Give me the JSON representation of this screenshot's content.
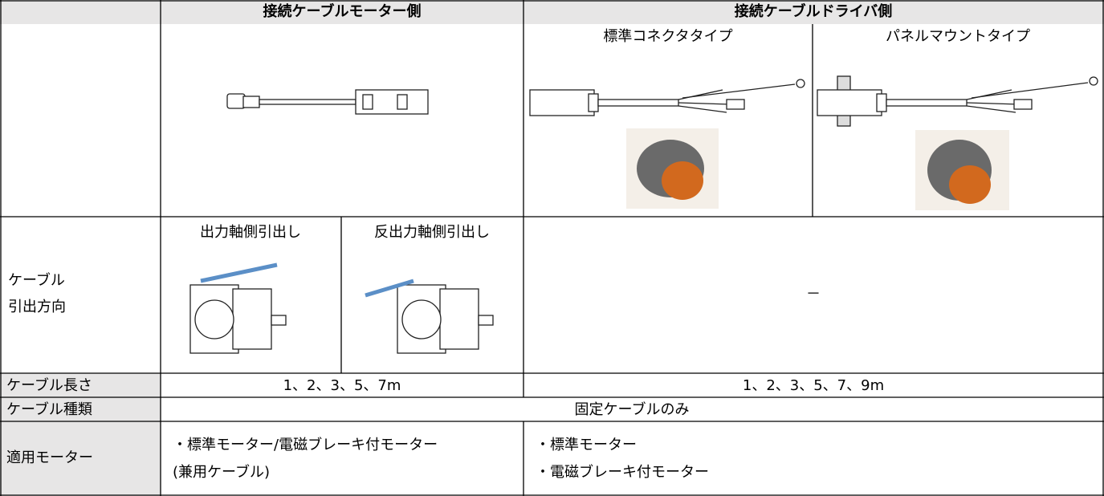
{
  "table": {
    "header": {
      "motor_side": "接続ケーブルモーター側",
      "driver_side": "接続ケーブルドライバ側",
      "standard_connector": "標準コネクタタイプ",
      "panel_mount": "パネルマウントタイプ"
    },
    "rows": [
      {
        "label": [
          "ケーブル",
          "引出方向"
        ],
        "output_shaft": "出力軸側引出し",
        "counter_output_shaft": "反出力軸側引出し",
        "driver": "－"
      },
      {
        "label": [
          "ケーブル長さ"
        ],
        "motor": "1、2、3、5、7m",
        "driver": "1、2、3、5、7、9m"
      },
      {
        "label": [
          "ケーブル種類"
        ],
        "both": "固定ケーブルのみ"
      },
      {
        "label": [
          "適用モーター"
        ],
        "motor": [
          "・標準モーター/電磁ブレーキ付モーター",
          "(兼用ケーブル)"
        ],
        "driver": [
          "・標準モーター",
          "・電磁ブレーキ付モーター"
        ]
      }
    ]
  }
}
